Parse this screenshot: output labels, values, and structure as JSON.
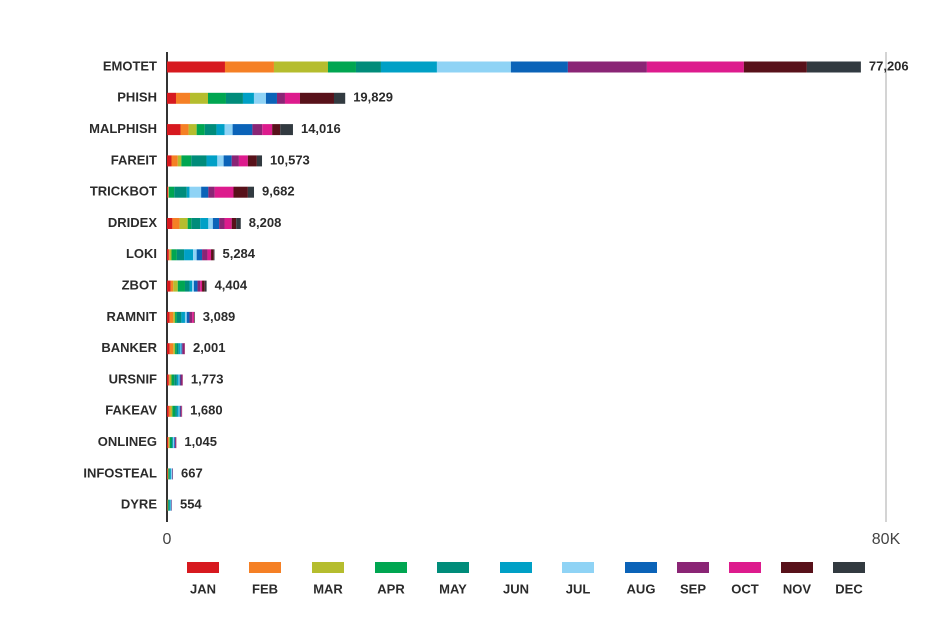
{
  "chart_data": {
    "type": "stacked-bar-horizontal",
    "categories": [
      "EMOTET",
      "PHISH",
      "MALPHISH",
      "FAREIT",
      "TRICKBOT",
      "DRIDEX",
      "LOKI",
      "ZBOT",
      "RAMNIT",
      "BANKER",
      "URSNIF",
      "FAKEAV",
      "ONLINEG",
      "INFOSTEAL",
      "DYRE"
    ],
    "totals": [
      77206,
      19829,
      14016,
      10573,
      9682,
      8208,
      5284,
      4404,
      3089,
      2001,
      1773,
      1680,
      1045,
      667,
      554
    ],
    "total_labels": [
      "77,206",
      "19,829",
      "14,016",
      "10,573",
      "9,682",
      "8,208",
      "5,284",
      "4,404",
      "3,089",
      "2,001",
      "1,773",
      "1,680",
      "1,045",
      "667",
      "554"
    ],
    "xlim": [
      0,
      80000
    ],
    "xticks": [
      0,
      {
        "value": 80000,
        "label": "80K"
      }
    ],
    "series": [
      {
        "name": "JAN",
        "color": "#d7191f",
        "values": [
          6450,
          1000,
          1500,
          500,
          100,
          600,
          200,
          400,
          300,
          300,
          200,
          200,
          100,
          50,
          30
        ]
      },
      {
        "name": "FEB",
        "color": "#f58025",
        "values": [
          5450,
          1560,
          900,
          700,
          50,
          800,
          100,
          300,
          400,
          400,
          100,
          200,
          100,
          50,
          30
        ]
      },
      {
        "name": "MAR",
        "color": "#b5bd2e",
        "values": [
          6010,
          2000,
          900,
          400,
          50,
          900,
          200,
          500,
          200,
          200,
          200,
          200,
          100,
          50,
          30
        ]
      },
      {
        "name": "APR",
        "color": "#00a651",
        "values": [
          3115,
          2000,
          900,
          1100,
          600,
          400,
          600,
          800,
          200,
          200,
          300,
          300,
          200,
          100,
          100
        ]
      },
      {
        "name": "MAY",
        "color": "#008c7a",
        "values": [
          2780,
          1890,
          1300,
          1700,
          1400,
          1000,
          800,
          500,
          500,
          200,
          300,
          200,
          100,
          100,
          100
        ]
      },
      {
        "name": "JUN",
        "color": "#00a0c6",
        "values": [
          6230,
          1225,
          900,
          1200,
          300,
          900,
          1000,
          300,
          400,
          200,
          200,
          200,
          100,
          100,
          100
        ]
      },
      {
        "name": "JUL",
        "color": "#8fd3f5",
        "values": [
          8230,
          1335,
          900,
          700,
          1300,
          500,
          400,
          200,
          200,
          100,
          100,
          100,
          100,
          100,
          80
        ]
      },
      {
        "name": "AUG",
        "color": "#0b63b8",
        "values": [
          6340,
          1225,
          2200,
          900,
          800,
          700,
          600,
          400,
          300,
          100,
          100,
          100,
          100,
          50,
          30
        ]
      },
      {
        "name": "SEP",
        "color": "#8a2575",
        "values": [
          8790,
          890,
          1100,
          800,
          700,
          600,
          600,
          300,
          300,
          200,
          200,
          100,
          100,
          30,
          20
        ]
      },
      {
        "name": "OCT",
        "color": "#dd1b8d",
        "values": [
          10790,
          1670,
          1100,
          1000,
          2100,
          800,
          400,
          200,
          200,
          50,
          40,
          50,
          20,
          20,
          20
        ]
      },
      {
        "name": "NOV",
        "color": "#58111a",
        "values": [
          7010,
          3785,
          900,
          1000,
          1600,
          500,
          300,
          300,
          50,
          30,
          20,
          20,
          15,
          10,
          10
        ]
      },
      {
        "name": "DEC",
        "color": "#323a40",
        "values": [
          6011,
          1249,
          1416,
          573,
          682,
          508,
          84,
          204,
          39,
          21,
          13,
          10,
          10,
          7,
          4
        ]
      }
    ]
  }
}
